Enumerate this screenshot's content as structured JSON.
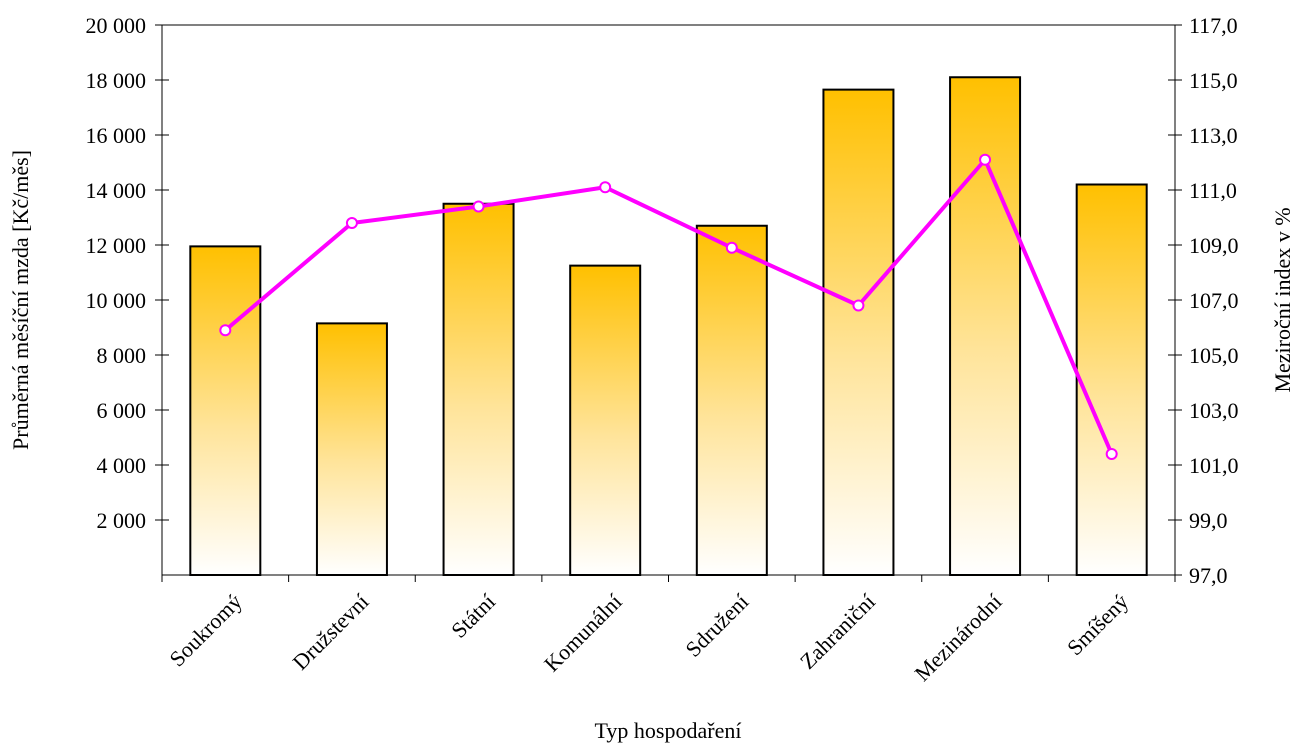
{
  "chart_data": {
    "type": "bar",
    "categories": [
      "Soukromý",
      "Družstevní",
      "Státní",
      "Komunální",
      "Sdružení",
      "Zahraniční",
      "Mezinárodní",
      "Smíšený"
    ],
    "series": [
      {
        "type": "bar",
        "axis": "left",
        "values": [
          11950,
          9150,
          13500,
          11250,
          12700,
          17650,
          18100,
          14200
        ]
      },
      {
        "type": "line",
        "axis": "right",
        "values": [
          105.9,
          109.8,
          110.4,
          111.1,
          108.9,
          106.8,
          112.1,
          101.4
        ]
      }
    ],
    "xlabel": "Typ hospodaření",
    "ylabel": "Průměrná měsíční mzda [Kč/měs]",
    "y2label": "Meziroční index v %",
    "ylim": [
      0,
      20000
    ],
    "y2lim": [
      97,
      117
    ],
    "yticks": [
      "2 000",
      "4 000",
      "6 000",
      "8 000",
      "10 000",
      "12 000",
      "14 000",
      "16 000",
      "18 000",
      "20 000"
    ],
    "y2ticks": [
      "97,0",
      "99,0",
      "101,0",
      "103,0",
      "105,0",
      "107,0",
      "109,0",
      "111,0",
      "113,0",
      "115,0",
      "117,0"
    ],
    "grid": false,
    "legend": "none",
    "colors": {
      "bar_top": "#ffc000",
      "bar_bottom": "#ffffff",
      "bar_edge": "#000000",
      "line": "#ff00ff",
      "marker_fill": "#ffffff"
    }
  }
}
